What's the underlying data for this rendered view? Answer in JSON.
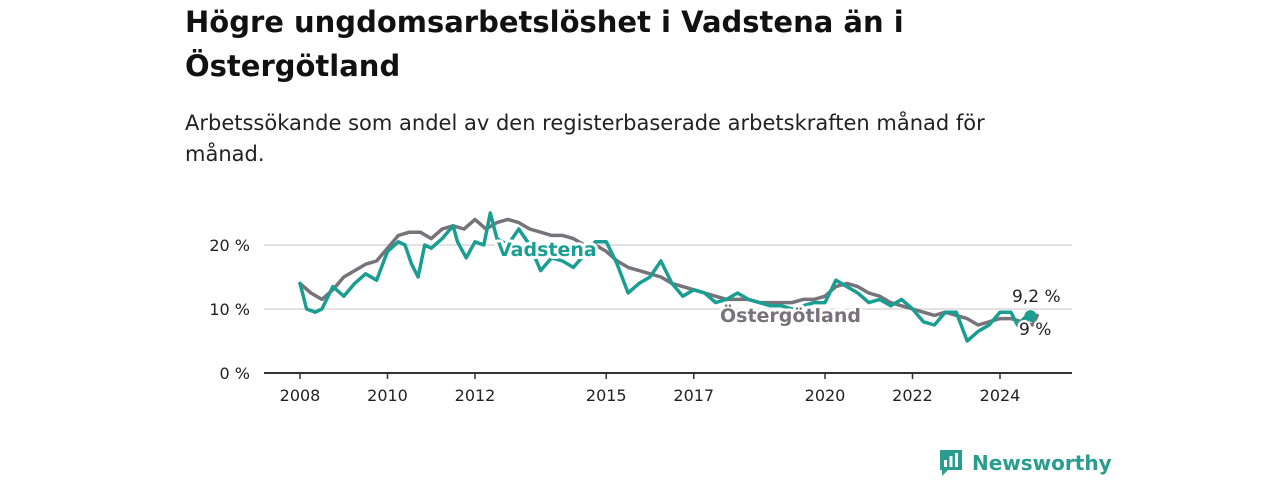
{
  "colors": {
    "vadstena": "#1b9e92",
    "ostergotland": "#77737a",
    "grid": "#d9d9d9",
    "axis": "#333333",
    "brand": "#2a9d8f"
  },
  "header": {
    "title": "Högre ungdomsarbetslöshet i Vadstena än i Östergötland",
    "subtitle": "Arbetssökande som andel av den registerbaserade arbetskraften månad för månad."
  },
  "brand": {
    "name": "Newsworthy",
    "icon": "bar-chart-icon"
  },
  "chart_data": {
    "type": "line",
    "x_ticks": [
      2008,
      2010,
      2012,
      2015,
      2017,
      2020,
      2022,
      2024
    ],
    "y_ticks": [
      0,
      10,
      20
    ],
    "y_tick_labels": [
      "0 %",
      "10 %",
      "20 %"
    ],
    "ylim": [
      0,
      25
    ],
    "xlim": [
      2007.5,
      2025.5
    ],
    "grid": true,
    "series": [
      {
        "name": "Östergötland",
        "end_label": "9 %",
        "points": [
          [
            2008.0,
            14.0
          ],
          [
            2008.25,
            12.5
          ],
          [
            2008.5,
            11.5
          ],
          [
            2008.75,
            13.0
          ],
          [
            2009.0,
            15.0
          ],
          [
            2009.25,
            16.0
          ],
          [
            2009.5,
            17.0
          ],
          [
            2009.75,
            17.5
          ],
          [
            2010.0,
            19.5
          ],
          [
            2010.25,
            21.5
          ],
          [
            2010.5,
            22.0
          ],
          [
            2010.75,
            22.0
          ],
          [
            2011.0,
            21.0
          ],
          [
            2011.25,
            22.5
          ],
          [
            2011.5,
            23.0
          ],
          [
            2011.75,
            22.5
          ],
          [
            2012.0,
            24.0
          ],
          [
            2012.25,
            22.5
          ],
          [
            2012.5,
            23.5
          ],
          [
            2012.75,
            24.0
          ],
          [
            2013.0,
            23.5
          ],
          [
            2013.25,
            22.5
          ],
          [
            2013.5,
            22.0
          ],
          [
            2013.75,
            21.5
          ],
          [
            2014.0,
            21.5
          ],
          [
            2014.25,
            21.0
          ],
          [
            2014.5,
            20.0
          ],
          [
            2014.75,
            20.0
          ],
          [
            2015.0,
            19.0
          ],
          [
            2015.25,
            17.5
          ],
          [
            2015.5,
            16.5
          ],
          [
            2015.75,
            16.0
          ],
          [
            2016.0,
            15.5
          ],
          [
            2016.25,
            15.0
          ],
          [
            2016.5,
            14.0
          ],
          [
            2016.75,
            13.5
          ],
          [
            2017.0,
            13.0
          ],
          [
            2017.25,
            12.5
          ],
          [
            2017.5,
            12.0
          ],
          [
            2017.75,
            11.5
          ],
          [
            2018.0,
            11.5
          ],
          [
            2018.25,
            11.5
          ],
          [
            2018.5,
            11.0
          ],
          [
            2018.75,
            11.0
          ],
          [
            2019.0,
            11.0
          ],
          [
            2019.25,
            11.0
          ],
          [
            2019.5,
            11.5
          ],
          [
            2019.75,
            11.5
          ],
          [
            2020.0,
            12.0
          ],
          [
            2020.25,
            13.5
          ],
          [
            2020.5,
            14.0
          ],
          [
            2020.75,
            13.5
          ],
          [
            2021.0,
            12.5
          ],
          [
            2021.25,
            12.0
          ],
          [
            2021.5,
            11.0
          ],
          [
            2021.75,
            10.5
          ],
          [
            2022.0,
            10.0
          ],
          [
            2022.25,
            9.5
          ],
          [
            2022.5,
            9.0
          ],
          [
            2022.75,
            9.5
          ],
          [
            2023.0,
            9.0
          ],
          [
            2023.25,
            8.5
          ],
          [
            2023.5,
            7.5
          ],
          [
            2023.75,
            8.0
          ],
          [
            2024.0,
            8.5
          ],
          [
            2024.25,
            8.5
          ],
          [
            2024.5,
            8.0
          ],
          [
            2024.75,
            7.5
          ],
          [
            2024.85,
            9.0
          ]
        ]
      },
      {
        "name": "Vadstena",
        "end_label": "9,2 %",
        "points": [
          [
            2008.0,
            14.0
          ],
          [
            2008.15,
            10.0
          ],
          [
            2008.35,
            9.5
          ],
          [
            2008.5,
            10.0
          ],
          [
            2008.75,
            13.5
          ],
          [
            2009.0,
            12.0
          ],
          [
            2009.25,
            14.0
          ],
          [
            2009.5,
            15.5
          ],
          [
            2009.75,
            14.5
          ],
          [
            2010.0,
            19.0
          ],
          [
            2010.25,
            20.5
          ],
          [
            2010.4,
            20.0
          ],
          [
            2010.55,
            17.0
          ],
          [
            2010.7,
            15.0
          ],
          [
            2010.85,
            20.0
          ],
          [
            2011.0,
            19.5
          ],
          [
            2011.25,
            21.0
          ],
          [
            2011.5,
            23.0
          ],
          [
            2011.6,
            20.5
          ],
          [
            2011.8,
            18.0
          ],
          [
            2012.0,
            20.5
          ],
          [
            2012.2,
            20.0
          ],
          [
            2012.35,
            25.0
          ],
          [
            2012.5,
            21.0
          ],
          [
            2012.75,
            20.0
          ],
          [
            2013.0,
            22.5
          ],
          [
            2013.25,
            20.0
          ],
          [
            2013.5,
            16.0
          ],
          [
            2013.75,
            18.0
          ],
          [
            2014.0,
            17.5
          ],
          [
            2014.25,
            16.5
          ],
          [
            2014.5,
            18.5
          ],
          [
            2014.75,
            20.5
          ],
          [
            2015.0,
            20.5
          ],
          [
            2015.25,
            17.0
          ],
          [
            2015.5,
            12.5
          ],
          [
            2015.75,
            14.0
          ],
          [
            2016.0,
            15.0
          ],
          [
            2016.25,
            17.5
          ],
          [
            2016.5,
            14.0
          ],
          [
            2016.75,
            12.0
          ],
          [
            2017.0,
            13.0
          ],
          [
            2017.25,
            12.5
          ],
          [
            2017.5,
            11.0
          ],
          [
            2017.75,
            11.5
          ],
          [
            2018.0,
            12.5
          ],
          [
            2018.25,
            11.5
          ],
          [
            2018.5,
            11.0
          ],
          [
            2018.75,
            10.5
          ],
          [
            2019.0,
            10.5
          ],
          [
            2019.25,
            10.0
          ],
          [
            2019.5,
            10.5
          ],
          [
            2019.75,
            11.0
          ],
          [
            2020.0,
            11.0
          ],
          [
            2020.25,
            14.5
          ],
          [
            2020.5,
            13.5
          ],
          [
            2020.75,
            12.5
          ],
          [
            2021.0,
            11.0
          ],
          [
            2021.25,
            11.5
          ],
          [
            2021.5,
            10.5
          ],
          [
            2021.75,
            11.5
          ],
          [
            2022.0,
            10.0
          ],
          [
            2022.25,
            8.0
          ],
          [
            2022.5,
            7.5
          ],
          [
            2022.75,
            9.5
          ],
          [
            2023.0,
            9.5
          ],
          [
            2023.25,
            5.0
          ],
          [
            2023.5,
            6.5
          ],
          [
            2023.75,
            7.5
          ],
          [
            2024.0,
            9.5
          ],
          [
            2024.25,
            9.5
          ],
          [
            2024.4,
            7.5
          ],
          [
            2024.65,
            9.2
          ]
        ]
      }
    ]
  }
}
